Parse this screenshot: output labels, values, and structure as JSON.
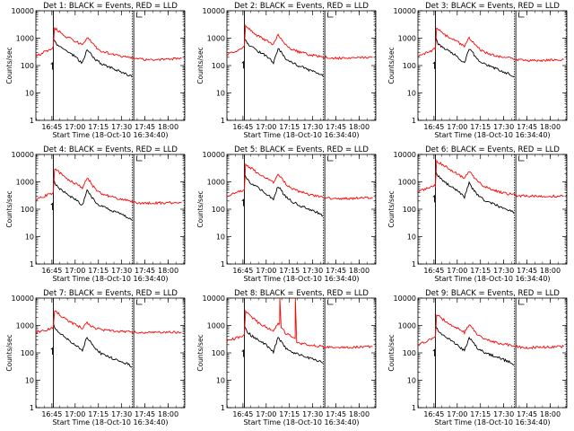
{
  "chart_data": {
    "type": "line",
    "y_scale": "log",
    "ylim": [
      1,
      10000
    ],
    "y_ticks": [
      1,
      10,
      100,
      1000,
      10000
    ],
    "y_tick_labels": [
      "1",
      "10",
      "100",
      "1000",
      "10000"
    ],
    "ylabel": "Counts/sec",
    "xlabel": "Start Time (18-Oct-10 16:34:40)",
    "x_units": "minutes since 16:34:40",
    "xlim": [
      0,
      96
    ],
    "x_ticks": [
      10.33,
      25.33,
      40.33,
      55.33,
      70.33,
      85.33
    ],
    "x_tick_labels": [
      "16:45",
      "17:00",
      "17:15",
      "17:30",
      "17:45",
      "18:00"
    ],
    "vlines": {
      "solid": [
        11.3,
        63.1
      ],
      "dotted": [
        62.2,
        95.6
      ]
    },
    "panels": [
      {
        "title": "Det 1: BLACK = Events, RED = LLD",
        "series": [
          {
            "name": "Events",
            "color": "#000000",
            "x": [
              11.3,
              13,
              16,
              20,
              25,
              30,
              33,
              35,
              38,
              42,
              48,
              54,
              60,
              62
            ],
            "y": [
              1000,
              600,
              450,
              320,
              220,
              120,
              380,
              300,
              170,
              120,
              85,
              62,
              45,
              38
            ]
          },
          {
            "name": "LLD",
            "color": "#ff0000",
            "x": [
              0,
              5,
              10,
              11.3,
              12,
              16,
              20,
              25,
              30,
              33,
              35,
              38,
              42,
              48,
              54,
              60,
              62,
              65,
              70,
              80,
              90,
              94
            ],
            "y": [
              220,
              300,
              420,
              470,
              2400,
              1600,
              1100,
              800,
              550,
              1100,
              850,
              500,
              340,
              270,
              220,
              200,
              190,
              175,
              165,
              170,
              175,
              180
            ]
          }
        ]
      },
      {
        "title": "Det 2: BLACK = Events, RED = LLD",
        "series": [
          {
            "name": "Events",
            "color": "#000000",
            "x": [
              11.3,
              13,
              16,
              20,
              25,
              30,
              33,
              35,
              38,
              42,
              48,
              54,
              60,
              62
            ],
            "y": [
              1100,
              650,
              480,
              330,
              230,
              130,
              420,
              320,
              180,
              125,
              90,
              65,
              48,
              40
            ]
          },
          {
            "name": "LLD",
            "color": "#ff0000",
            "x": [
              0,
              5,
              10,
              11.3,
              12,
              16,
              20,
              25,
              30,
              33,
              35,
              38,
              42,
              48,
              54,
              60,
              62,
              65,
              70,
              80,
              90,
              94
            ],
            "y": [
              240,
              320,
              450,
              500,
              2800,
              1800,
              1200,
              850,
              600,
              1300,
              950,
              550,
              380,
              300,
              240,
              220,
              205,
              195,
              185,
              190,
              195,
              200
            ]
          }
        ]
      },
      {
        "title": "Det 3: BLACK = Events, RED = LLD",
        "series": [
          {
            "name": "Events",
            "color": "#000000",
            "x": [
              11.3,
              13,
              16,
              20,
              25,
              30,
              33,
              35,
              38,
              42,
              48,
              54,
              60,
              62
            ],
            "y": [
              1050,
              620,
              460,
              330,
              220,
              125,
              400,
              310,
              175,
              120,
              88,
              64,
              46,
              38
            ]
          },
          {
            "name": "LLD",
            "color": "#ff0000",
            "x": [
              0,
              5,
              10,
              11.3,
              12,
              16,
              20,
              25,
              30,
              33,
              35,
              38,
              42,
              48,
              54,
              60,
              62,
              65,
              70,
              80,
              90,
              94
            ],
            "y": [
              210,
              280,
              380,
              420,
              2300,
              1500,
              1050,
              760,
              520,
              1000,
              800,
              470,
              320,
              250,
              200,
              185,
              170,
              160,
              150,
              155,
              160,
              165
            ]
          }
        ]
      },
      {
        "title": "Det 4: BLACK = Events, RED = LLD",
        "series": [
          {
            "name": "Events",
            "color": "#000000",
            "x": [
              11.3,
              13,
              16,
              20,
              25,
              30,
              33,
              35,
              38,
              42,
              48,
              54,
              60,
              62
            ],
            "y": [
              1300,
              750,
              520,
              360,
              240,
              140,
              500,
              340,
              190,
              130,
              92,
              68,
              50,
              40
            ]
          },
          {
            "name": "LLD",
            "color": "#ff0000",
            "x": [
              0,
              5,
              10,
              11.3,
              12,
              16,
              20,
              25,
              30,
              33,
              35,
              38,
              42,
              48,
              54,
              60,
              62,
              65,
              70,
              80,
              90,
              94
            ],
            "y": [
              220,
              290,
              380,
              420,
              3000,
              2000,
              1300,
              900,
              600,
              1400,
              1000,
              560,
              380,
              290,
              230,
              210,
              190,
              175,
              165,
              170,
              175,
              180
            ]
          }
        ]
      },
      {
        "title": "Det 5: BLACK = Events, RED = LLD",
        "series": [
          {
            "name": "Events",
            "color": "#000000",
            "x": [
              11.3,
              13,
              16,
              20,
              25,
              30,
              33,
              35,
              38,
              42,
              48,
              54,
              60,
              62
            ],
            "y": [
              1800,
              1200,
              850,
              600,
              380,
              220,
              700,
              480,
              280,
              190,
              130,
              95,
              70,
              58
            ]
          },
          {
            "name": "LLD",
            "color": "#ff0000",
            "x": [
              0,
              5,
              10,
              11.3,
              12,
              16,
              20,
              25,
              30,
              33,
              35,
              38,
              42,
              48,
              54,
              60,
              62,
              65,
              70,
              80,
              90,
              94
            ],
            "y": [
              300,
              380,
              480,
              520,
              4200,
              3000,
              2100,
              1400,
              950,
              1900,
              1400,
              850,
              560,
              420,
              330,
              290,
              270,
              255,
              245,
              250,
              255,
              260
            ]
          }
        ]
      },
      {
        "title": "Det 6: BLACK = Events, RED = LLD",
        "series": [
          {
            "name": "Events",
            "color": "#000000",
            "x": [
              11.3,
              13,
              16,
              20,
              25,
              30,
              33,
              35,
              38,
              42,
              48,
              54,
              60,
              62
            ],
            "y": [
              2500,
              1600,
              1100,
              750,
              480,
              280,
              900,
              600,
              340,
              230,
              160,
              115,
              85,
              70
            ]
          },
          {
            "name": "LLD",
            "color": "#ff0000",
            "x": [
              0,
              5,
              10,
              11.3,
              12,
              16,
              20,
              25,
              30,
              33,
              35,
              38,
              42,
              48,
              54,
              60,
              62,
              65,
              70,
              80,
              90,
              94
            ],
            "y": [
              450,
              550,
              700,
              750,
              5500,
              4200,
              3000,
              2000,
              1300,
              2500,
              1800,
              1100,
              700,
              520,
              400,
              350,
              330,
              310,
              300,
              300,
              300,
              300
            ]
          }
        ]
      },
      {
        "title": "Det 7: BLACK = Events, RED = LLD",
        "series": [
          {
            "name": "Events",
            "color": "#000000",
            "x": [
              11.3,
              13,
              16,
              20,
              25,
              30,
              33,
              35,
              38,
              42,
              48,
              54,
              60,
              62
            ],
            "y": [
              1200,
              700,
              480,
              330,
              210,
              120,
              380,
              260,
              150,
              95,
              68,
              50,
              38,
              30
            ]
          },
          {
            "name": "LLD",
            "color": "#ff0000",
            "x": [
              0,
              5,
              10,
              11.3,
              12,
              16,
              20,
              25,
              30,
              33,
              35,
              38,
              42,
              48,
              54,
              60,
              62,
              65,
              70,
              80,
              90,
              94
            ],
            "y": [
              550,
              650,
              780,
              820,
              3600,
              2300,
              1600,
              1100,
              800,
              1300,
              1000,
              800,
              700,
              640,
              600,
              580,
              570,
              560,
              550,
              560,
              560,
              560
            ]
          }
        ]
      },
      {
        "title": "Det 8: BLACK = Events, RED = LLD",
        "series": [
          {
            "name": "Events",
            "color": "#000000",
            "x": [
              11.3,
              13,
              16,
              20,
              25,
              30,
              33,
              35,
              38,
              42,
              48,
              54,
              60,
              62
            ],
            "y": [
              1000,
              600,
              420,
              300,
              200,
              110,
              350,
              260,
              150,
              105,
              80,
              62,
              48,
              42
            ]
          },
          {
            "name": "LLD",
            "color": "#ff0000",
            "x": [
              0,
              5,
              10,
              11.3,
              12,
              16,
              20,
              25,
              30,
              33,
              34,
              34.1,
              35,
              38,
              42,
              44,
              44.1,
              45,
              48,
              54,
              60,
              62,
              65,
              70,
              80,
              90,
              94
            ],
            "y": [
              280,
              330,
              400,
              430,
              3200,
              2000,
              1300,
              900,
              600,
              1200,
              1150,
              10000,
              900,
              520,
              380,
              340,
              10000,
              260,
              220,
              190,
              175,
              165,
              160,
              155,
              160,
              165,
              170
            ]
          }
        ]
      },
      {
        "title": "Det 9: BLACK = Events, RED = LLD",
        "series": [
          {
            "name": "Events",
            "color": "#000000",
            "x": [
              11.3,
              13,
              16,
              20,
              25,
              30,
              33,
              35,
              38,
              42,
              48,
              54,
              60,
              62
            ],
            "y": [
              1050,
              620,
              440,
              310,
              200,
              120,
              360,
              270,
              155,
              110,
              80,
              60,
              44,
              36
            ]
          },
          {
            "name": "LLD",
            "color": "#ff0000",
            "x": [
              0,
              5,
              10,
              11.3,
              12,
              16,
              20,
              25,
              30,
              33,
              35,
              38,
              42,
              48,
              54,
              60,
              62,
              65,
              70,
              80,
              90,
              94
            ],
            "y": [
              200,
              260,
              360,
              400,
              2600,
              1700,
              1150,
              820,
              560,
              1100,
              850,
              500,
              340,
              260,
              210,
              190,
              175,
              165,
              155,
              160,
              165,
              170
            ]
          }
        ]
      }
    ]
  }
}
